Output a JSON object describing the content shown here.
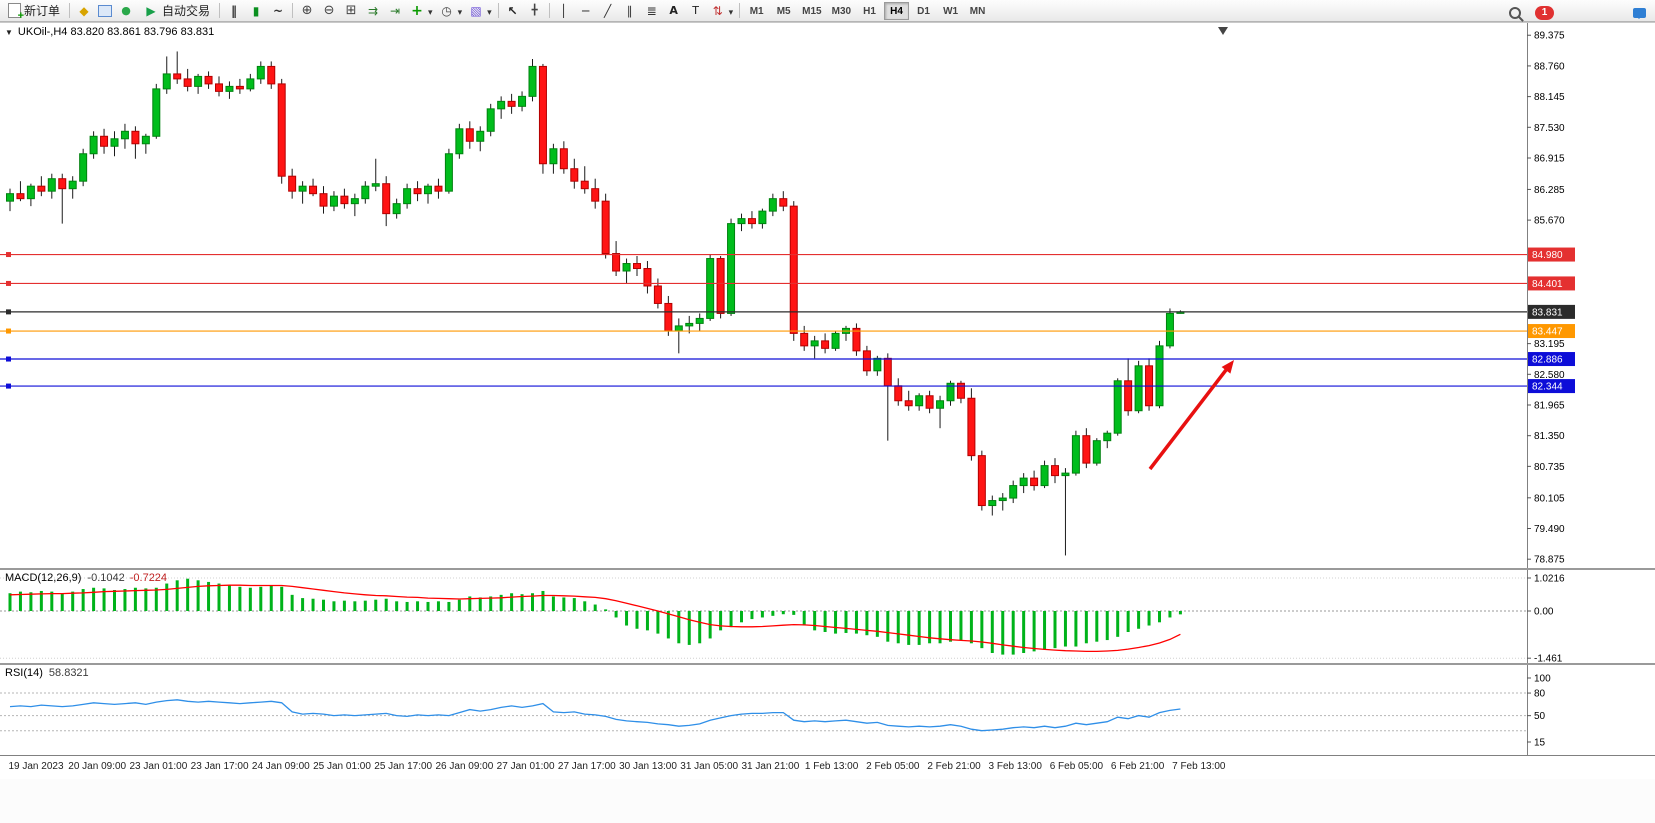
{
  "toolbar": {
    "new_order": "新订单",
    "auto_trading": "自动交易",
    "timeframes": [
      "M1",
      "M5",
      "M15",
      "M30",
      "H1",
      "H4",
      "D1",
      "W1",
      "MN"
    ],
    "active_timeframe": "H4",
    "notification_count": "1"
  },
  "chart_header": {
    "symbol_ohlc": "UKOil-,H4  83.820 83.861 83.796 83.831"
  },
  "chart_data": {
    "type": "candlestick",
    "symbol": "UKOil-",
    "timeframe": "H4",
    "current_bar": {
      "open": "83.820",
      "high": "83.861",
      "low": "83.796",
      "close": "83.831"
    },
    "y_axis": {
      "labels": [
        "89.375",
        "88.760",
        "88.145",
        "87.530",
        "86.915",
        "86.285",
        "85.670",
        "83.195",
        "82.580",
        "81.965",
        "81.350",
        "80.735",
        "80.105",
        "79.490",
        "78.875"
      ],
      "min": 78.875,
      "max": 89.375
    },
    "hlines": [
      {
        "price": 84.98,
        "label": "84.980",
        "color": "#e43030"
      },
      {
        "price": 84.401,
        "label": "84.401",
        "color": "#e43030"
      },
      {
        "price": 83.831,
        "label": "83.831",
        "color": "#2b2b2b"
      },
      {
        "price": 83.447,
        "label": "83.447",
        "color": "#ff9800"
      },
      {
        "price": 82.886,
        "label": "82.886",
        "color": "#0d0dd8"
      },
      {
        "price": 82.344,
        "label": "82.344",
        "color": "#0d0dd8"
      }
    ],
    "x_labels": [
      "19 Jan 2023",
      "20 Jan 09:00",
      "23 Jan 01:00",
      "23 Jan 17:00",
      "24 Jan 09:00",
      "25 Jan 01:00",
      "25 Jan 17:00",
      "26 Jan 09:00",
      "27 Jan 01:00",
      "27 Jan 17:00",
      "30 Jan 13:00",
      "31 Jan 05:00",
      "31 Jan 21:00",
      "1 Feb 13:00",
      "2 Feb 05:00",
      "2 Feb 21:00",
      "3 Feb 13:00",
      "6 Feb 05:00",
      "6 Feb 21:00",
      "7 Feb 13:00"
    ],
    "colors": {
      "up": "#00bd1c",
      "up_border": "#00820f",
      "down": "#ff1414",
      "down_border": "#b30000",
      "wick": "#1a1a1a",
      "macd_hist": "#00b31a",
      "macd_signal": "#ff0000",
      "rsi_line": "#2f8fe8",
      "arrow": "#e81010"
    },
    "candles": [
      [
        86.05,
        86.3,
        85.85,
        86.2
      ],
      [
        86.2,
        86.45,
        86.05,
        86.1
      ],
      [
        86.1,
        86.4,
        85.95,
        86.35
      ],
      [
        86.35,
        86.55,
        86.15,
        86.25
      ],
      [
        86.25,
        86.6,
        86.1,
        86.5
      ],
      [
        86.5,
        86.6,
        85.6,
        86.3
      ],
      [
        86.3,
        86.55,
        86.1,
        86.45
      ],
      [
        86.45,
        87.1,
        86.35,
        87.0
      ],
      [
        87.0,
        87.45,
        86.9,
        87.35
      ],
      [
        87.35,
        87.5,
        87.0,
        87.15
      ],
      [
        87.15,
        87.45,
        86.95,
        87.3
      ],
      [
        87.3,
        87.6,
        87.1,
        87.45
      ],
      [
        87.45,
        87.55,
        86.9,
        87.2
      ],
      [
        87.2,
        87.4,
        87.0,
        87.35
      ],
      [
        87.35,
        88.4,
        87.3,
        88.3
      ],
      [
        88.3,
        88.95,
        88.2,
        88.6
      ],
      [
        88.6,
        89.05,
        88.4,
        88.5
      ],
      [
        88.5,
        88.7,
        88.25,
        88.35
      ],
      [
        88.35,
        88.6,
        88.2,
        88.55
      ],
      [
        88.55,
        88.65,
        88.3,
        88.4
      ],
      [
        88.4,
        88.55,
        88.15,
        88.25
      ],
      [
        88.25,
        88.45,
        88.1,
        88.35
      ],
      [
        88.35,
        88.5,
        88.2,
        88.3
      ],
      [
        88.3,
        88.6,
        88.25,
        88.5
      ],
      [
        88.5,
        88.85,
        88.4,
        88.75
      ],
      [
        88.75,
        88.85,
        88.3,
        88.4
      ],
      [
        88.4,
        88.5,
        86.4,
        86.55
      ],
      [
        86.55,
        86.7,
        86.1,
        86.25
      ],
      [
        86.25,
        86.45,
        86.0,
        86.35
      ],
      [
        86.35,
        86.5,
        86.15,
        86.2
      ],
      [
        86.2,
        86.35,
        85.8,
        85.95
      ],
      [
        85.95,
        86.25,
        85.85,
        86.15
      ],
      [
        86.15,
        86.3,
        85.9,
        86.0
      ],
      [
        86.0,
        86.2,
        85.75,
        86.1
      ],
      [
        86.1,
        86.45,
        86.0,
        86.35
      ],
      [
        86.35,
        86.9,
        86.25,
        86.4
      ],
      [
        86.4,
        86.55,
        85.55,
        85.8
      ],
      [
        85.8,
        86.1,
        85.7,
        86.0
      ],
      [
        86.0,
        86.4,
        85.9,
        86.3
      ],
      [
        86.3,
        86.45,
        86.05,
        86.2
      ],
      [
        86.2,
        86.4,
        86.0,
        86.35
      ],
      [
        86.35,
        86.5,
        86.1,
        86.25
      ],
      [
        86.25,
        87.1,
        86.2,
        87.0
      ],
      [
        87.0,
        87.6,
        86.9,
        87.5
      ],
      [
        87.5,
        87.65,
        87.1,
        87.25
      ],
      [
        87.25,
        87.55,
        87.05,
        87.45
      ],
      [
        87.45,
        88.0,
        87.35,
        87.9
      ],
      [
        87.9,
        88.15,
        87.7,
        88.05
      ],
      [
        88.05,
        88.2,
        87.8,
        87.95
      ],
      [
        87.95,
        88.25,
        87.85,
        88.15
      ],
      [
        88.15,
        88.9,
        88.05,
        88.75
      ],
      [
        88.75,
        88.8,
        86.6,
        86.8
      ],
      [
        86.8,
        87.2,
        86.6,
        87.1
      ],
      [
        87.1,
        87.25,
        86.6,
        86.7
      ],
      [
        86.7,
        86.9,
        86.3,
        86.45
      ],
      [
        86.45,
        86.75,
        86.2,
        86.3
      ],
      [
        86.3,
        86.5,
        85.9,
        86.05
      ],
      [
        86.05,
        86.2,
        84.9,
        85.0
      ],
      [
        85.0,
        85.25,
        84.55,
        84.65
      ],
      [
        84.65,
        84.9,
        84.4,
        84.8
      ],
      [
        84.8,
        84.95,
        84.55,
        84.7
      ],
      [
        84.7,
        84.85,
        84.2,
        84.35
      ],
      [
        84.35,
        84.5,
        83.9,
        84.0
      ],
      [
        84.0,
        84.15,
        83.35,
        83.45
      ],
      [
        83.45,
        83.7,
        83.0,
        83.55
      ],
      [
        83.55,
        83.75,
        83.4,
        83.6
      ],
      [
        83.6,
        83.8,
        83.45,
        83.7
      ],
      [
        83.7,
        84.98,
        83.65,
        84.9
      ],
      [
        84.9,
        84.95,
        83.7,
        83.8
      ],
      [
        83.8,
        85.7,
        83.75,
        85.6
      ],
      [
        85.6,
        85.8,
        85.45,
        85.7
      ],
      [
        85.7,
        85.85,
        85.5,
        85.6
      ],
      [
        85.6,
        85.9,
        85.5,
        85.85
      ],
      [
        85.85,
        86.2,
        85.75,
        86.1
      ],
      [
        86.1,
        86.25,
        85.85,
        85.95
      ],
      [
        85.95,
        86.05,
        83.25,
        83.4
      ],
      [
        83.4,
        83.55,
        83.05,
        83.15
      ],
      [
        83.15,
        83.35,
        82.9,
        83.25
      ],
      [
        83.25,
        83.4,
        83.0,
        83.1
      ],
      [
        83.1,
        83.45,
        83.05,
        83.4
      ],
      [
        83.4,
        83.55,
        83.25,
        83.5
      ],
      [
        83.5,
        83.6,
        82.95,
        83.05
      ],
      [
        83.05,
        83.15,
        82.55,
        82.65
      ],
      [
        82.65,
        82.95,
        82.55,
        82.9
      ],
      [
        82.9,
        83.0,
        81.25,
        82.35
      ],
      [
        82.35,
        82.5,
        81.95,
        82.05
      ],
      [
        82.05,
        82.25,
        81.85,
        81.95
      ],
      [
        81.95,
        82.2,
        81.85,
        82.15
      ],
      [
        82.15,
        82.25,
        81.8,
        81.9
      ],
      [
        81.9,
        82.15,
        81.5,
        82.05
      ],
      [
        82.05,
        82.45,
        81.95,
        82.4
      ],
      [
        82.4,
        82.45,
        82.0,
        82.1
      ],
      [
        82.1,
        82.3,
        80.85,
        80.95
      ],
      [
        80.95,
        81.05,
        79.85,
        79.95
      ],
      [
        79.95,
        80.15,
        79.75,
        80.05
      ],
      [
        80.05,
        80.2,
        79.85,
        80.1
      ],
      [
        80.1,
        80.45,
        80.0,
        80.35
      ],
      [
        80.35,
        80.6,
        80.2,
        80.5
      ],
      [
        80.5,
        80.65,
        80.25,
        80.35
      ],
      [
        80.35,
        80.85,
        80.3,
        80.75
      ],
      [
        80.75,
        80.9,
        80.4,
        80.55
      ],
      [
        80.55,
        80.7,
        78.95,
        80.6
      ],
      [
        80.6,
        81.45,
        80.55,
        81.35
      ],
      [
        81.35,
        81.5,
        80.7,
        80.8
      ],
      [
        80.8,
        81.3,
        80.75,
        81.25
      ],
      [
        81.25,
        81.45,
        81.1,
        81.4
      ],
      [
        81.4,
        82.5,
        81.35,
        82.45
      ],
      [
        82.45,
        82.9,
        81.75,
        81.85
      ],
      [
        81.85,
        82.85,
        81.8,
        82.75
      ],
      [
        82.75,
        82.9,
        81.85,
        81.95
      ],
      [
        81.95,
        83.25,
        81.9,
        83.15
      ],
      [
        83.15,
        83.9,
        83.1,
        83.8
      ],
      [
        83.82,
        83.861,
        83.796,
        83.831
      ]
    ],
    "macd": {
      "label": "MACD(12,26,9)",
      "value_main": "-0.1042",
      "value_signal": "-0.7224",
      "axis_labels": [
        "1.0216",
        "0.00",
        "-1.461"
      ],
      "range": [
        -1.461,
        1.0216
      ],
      "histogram": [
        0.55,
        0.6,
        0.58,
        0.62,
        0.6,
        0.55,
        0.6,
        0.68,
        0.72,
        0.7,
        0.65,
        0.68,
        0.72,
        0.7,
        0.72,
        0.85,
        0.95,
        1.0,
        0.95,
        0.9,
        0.85,
        0.8,
        0.75,
        0.72,
        0.75,
        0.8,
        0.75,
        0.5,
        0.4,
        0.38,
        0.35,
        0.3,
        0.32,
        0.3,
        0.32,
        0.35,
        0.38,
        0.3,
        0.28,
        0.3,
        0.28,
        0.3,
        0.28,
        0.35,
        0.45,
        0.42,
        0.45,
        0.5,
        0.55,
        0.52,
        0.55,
        0.62,
        0.45,
        0.42,
        0.4,
        0.3,
        0.2,
        0.05,
        -0.2,
        -0.45,
        -0.55,
        -0.6,
        -0.7,
        -0.85,
        -1.0,
        -1.05,
        -1.0,
        -0.85,
        -0.6,
        -0.5,
        -0.35,
        -0.25,
        -0.2,
        -0.15,
        -0.1,
        -0.12,
        -0.45,
        -0.6,
        -0.65,
        -0.7,
        -0.68,
        -0.7,
        -0.75,
        -0.8,
        -0.95,
        -1.0,
        -1.05,
        -1.05,
        -1.0,
        -1.0,
        -0.95,
        -0.9,
        -1.0,
        -1.15,
        -1.3,
        -1.35,
        -1.35,
        -1.3,
        -1.25,
        -1.2,
        -1.15,
        -1.1,
        -1.1,
        -1.0,
        -0.95,
        -0.9,
        -0.8,
        -0.65,
        -0.55,
        -0.45,
        -0.35,
        -0.2,
        -0.1042
      ],
      "signal": [
        0.5,
        0.51,
        0.52,
        0.53,
        0.54,
        0.54,
        0.55,
        0.56,
        0.58,
        0.6,
        0.61,
        0.62,
        0.63,
        0.64,
        0.65,
        0.67,
        0.7,
        0.73,
        0.76,
        0.78,
        0.79,
        0.8,
        0.8,
        0.79,
        0.79,
        0.79,
        0.79,
        0.76,
        0.72,
        0.68,
        0.64,
        0.6,
        0.56,
        0.53,
        0.5,
        0.48,
        0.47,
        0.45,
        0.43,
        0.42,
        0.4,
        0.39,
        0.38,
        0.37,
        0.38,
        0.39,
        0.4,
        0.41,
        0.43,
        0.45,
        0.46,
        0.48,
        0.48,
        0.47,
        0.46,
        0.44,
        0.42,
        0.38,
        0.32,
        0.24,
        0.16,
        0.08,
        0.0,
        -0.09,
        -0.18,
        -0.27,
        -0.35,
        -0.42,
        -0.46,
        -0.48,
        -0.49,
        -0.49,
        -0.48,
        -0.46,
        -0.44,
        -0.42,
        -0.43,
        -0.45,
        -0.48,
        -0.51,
        -0.54,
        -0.57,
        -0.6,
        -0.63,
        -0.67,
        -0.71,
        -0.75,
        -0.79,
        -0.83,
        -0.86,
        -0.89,
        -0.91,
        -0.93,
        -0.96,
        -1.0,
        -1.05,
        -1.09,
        -1.13,
        -1.16,
        -1.19,
        -1.21,
        -1.23,
        -1.24,
        -1.25,
        -1.25,
        -1.24,
        -1.22,
        -1.18,
        -1.13,
        -1.07,
        -0.99,
        -0.88,
        -0.7224
      ]
    },
    "rsi": {
      "label": "RSI(14)",
      "value": "58.8321",
      "axis_labels": [
        "100",
        "80",
        "50",
        "15"
      ],
      "levels": [
        80,
        50,
        30
      ],
      "values": [
        62,
        63,
        62,
        64,
        63,
        62,
        63,
        65,
        67,
        66,
        65,
        66,
        67,
        65,
        68,
        70,
        71,
        69,
        68,
        69,
        68,
        67,
        66,
        67,
        68,
        69,
        67,
        55,
        52,
        53,
        52,
        50,
        51,
        50,
        51,
        52,
        53,
        50,
        49,
        51,
        50,
        51,
        50,
        54,
        58,
        56,
        58,
        61,
        63,
        61,
        63,
        66,
        55,
        54,
        55,
        52,
        51,
        49,
        45,
        43,
        42,
        41,
        39,
        38,
        36,
        37,
        39,
        44,
        47,
        50,
        52,
        53,
        53,
        54,
        54,
        44,
        42,
        43,
        42,
        43,
        44,
        42,
        40,
        41,
        37,
        36,
        35,
        36,
        35,
        36,
        38,
        36,
        32,
        30,
        31,
        32,
        34,
        35,
        34,
        36,
        34,
        36,
        40,
        38,
        40,
        42,
        48,
        46,
        50,
        48,
        54,
        57,
        58.8321
      ]
    },
    "annotation": {
      "type": "arrow",
      "direction": "up-right",
      "color": "#e81010"
    }
  }
}
